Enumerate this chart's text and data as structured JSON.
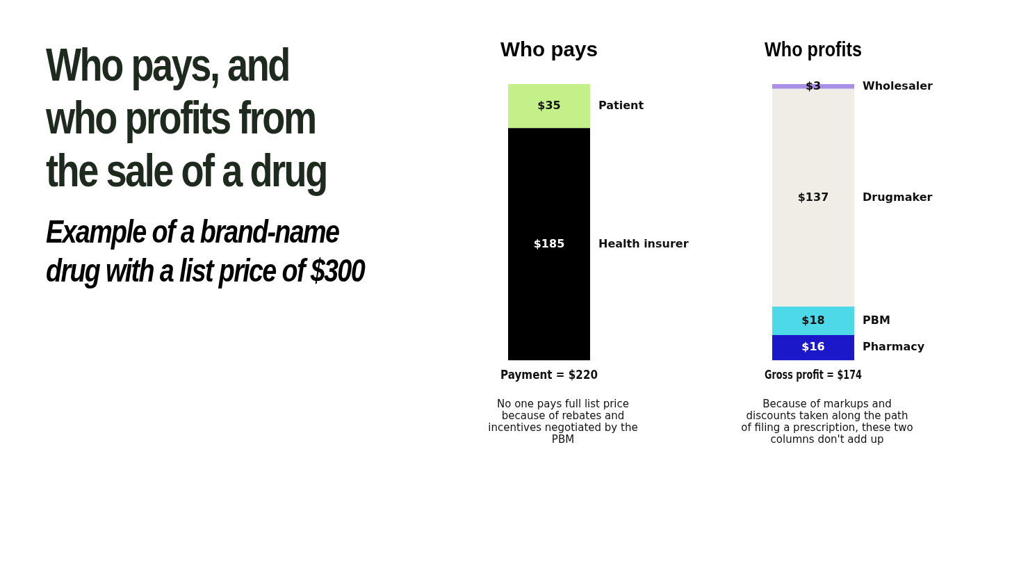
{
  "chart_data": [
    {
      "type": "other",
      "title": "Who pays, and who profits from the sale of a drug",
      "subtitle": "Example of a brand-name drug with a list price of $300"
    },
    {
      "type": "bar",
      "stacked": true,
      "title": "Who pays",
      "categories": [
        null
      ],
      "xlabel": "Payment = $220",
      "ylim": [
        0,
        220
      ],
      "legend": false,
      "series": [
        {
          "name": "Health insurer",
          "color": "#000000",
          "values": [
            185
          ],
          "value_labels": [
            "$185"
          ]
        },
        {
          "name": "Patient",
          "color": "#c3f088",
          "values": [
            35
          ],
          "value_labels": [
            "$35"
          ]
        }
      ],
      "annotations": [
        "No one pays full list price because of rebates and incentives negotiated by the PBM"
      ]
    },
    {
      "type": "bar",
      "stacked": true,
      "title": "Who profits",
      "categories": [
        null
      ],
      "xlabel": "Gross profit = $174",
      "ylim": [
        0,
        174
      ],
      "legend": false,
      "series": [
        {
          "name": "Pharmacy",
          "color": "#1a18c9",
          "values": [
            16
          ],
          "value_labels": [
            "$16"
          ]
        },
        {
          "name": "PBM",
          "color": "#4dd9e8",
          "values": [
            18
          ],
          "value_labels": [
            "$18"
          ]
        },
        {
          "name": "Drugmaker",
          "color": "#efede6",
          "values": [
            137
          ],
          "value_labels": [
            "$137"
          ]
        },
        {
          "name": "Wholesaler",
          "color": "#a98ee8",
          "values": [
            3
          ],
          "value_labels": [
            "$3"
          ]
        }
      ],
      "annotations": [
        "Because of markups and discounts taken along the path of filing a prescription, these two columns don't add up"
      ]
    }
  ]
}
